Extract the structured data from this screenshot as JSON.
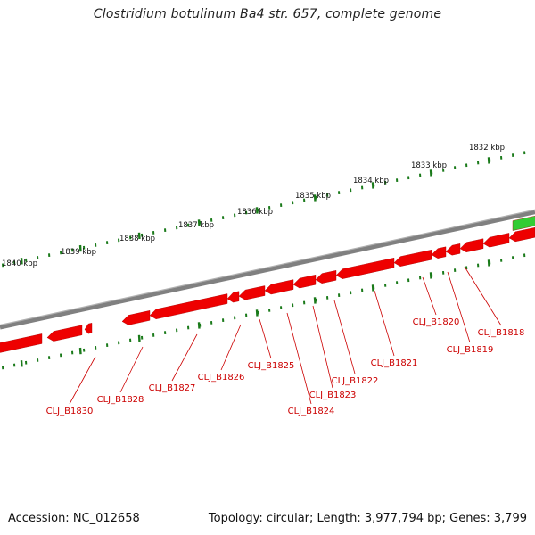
{
  "title": "Clostridium botulinum Ba4 str. 657, complete genome",
  "footer": {
    "accession": "Accession: NC_012658",
    "summary": "Topology: circular; Length: 3,977,794 bp; Genes: 3,799"
  },
  "colors": {
    "backbone": "#808080",
    "gene_reverse": "#ee0000",
    "gene_forward": "#33cc33",
    "tick": "#1a7a1a",
    "label": "#cc0000"
  },
  "kbp_ticks": [
    {
      "label": "1832 kbp"
    },
    {
      "label": "1833 kbp"
    },
    {
      "label": "1834 kbp"
    },
    {
      "label": "1835 kbp"
    },
    {
      "label": "1836 kbp"
    },
    {
      "label": "1837 kbp"
    },
    {
      "label": "1838 kbp"
    },
    {
      "label": "1839 kbp"
    },
    {
      "label": "1840 kbp"
    }
  ],
  "gene_labels": [
    "CLJ_B1818",
    "CLJ_B1819",
    "CLJ_B1820",
    "CLJ_B1821",
    "CLJ_B1822",
    "CLJ_B1823",
    "CLJ_B1824",
    "CLJ_B1825",
    "CLJ_B1826",
    "CLJ_B1827",
    "CLJ_B1828",
    "CLJ_B1830"
  ]
}
